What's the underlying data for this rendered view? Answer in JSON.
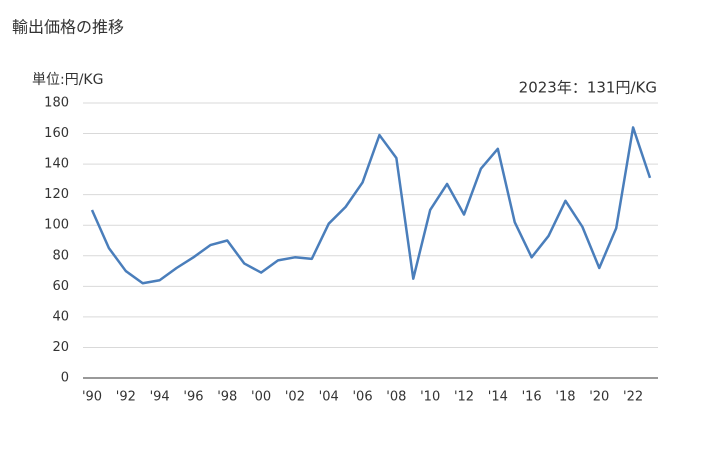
{
  "chart_data": {
    "type": "line",
    "title": "輸出価格の推移",
    "unit_label": "単位:円/KG",
    "annotation": "2023年：131円/KG",
    "categories": [
      "'90",
      null,
      "'92",
      null,
      "'94",
      null,
      "'96",
      null,
      "'98",
      null,
      "'00",
      null,
      "'02",
      null,
      "'04",
      null,
      "'06",
      null,
      "'08",
      null,
      "'10",
      null,
      "'12",
      null,
      "'14",
      null,
      "'16",
      null,
      "'18",
      null,
      "'20",
      null,
      "'22",
      null
    ],
    "series": [
      {
        "name": "輸出価格",
        "color": "#4a7ebb",
        "values": [
          110,
          85,
          70,
          62,
          64,
          72,
          79,
          87,
          90,
          75,
          69,
          77,
          79,
          78,
          101,
          112,
          128,
          159,
          144,
          65,
          110,
          127,
          107,
          137,
          150,
          102,
          79,
          93,
          116,
          99,
          72,
          98,
          164,
          131
        ]
      }
    ],
    "ylim": [
      0,
      180
    ],
    "yticks": [
      0,
      20,
      40,
      60,
      80,
      100,
      120,
      140,
      160,
      180
    ],
    "grid": true
  }
}
